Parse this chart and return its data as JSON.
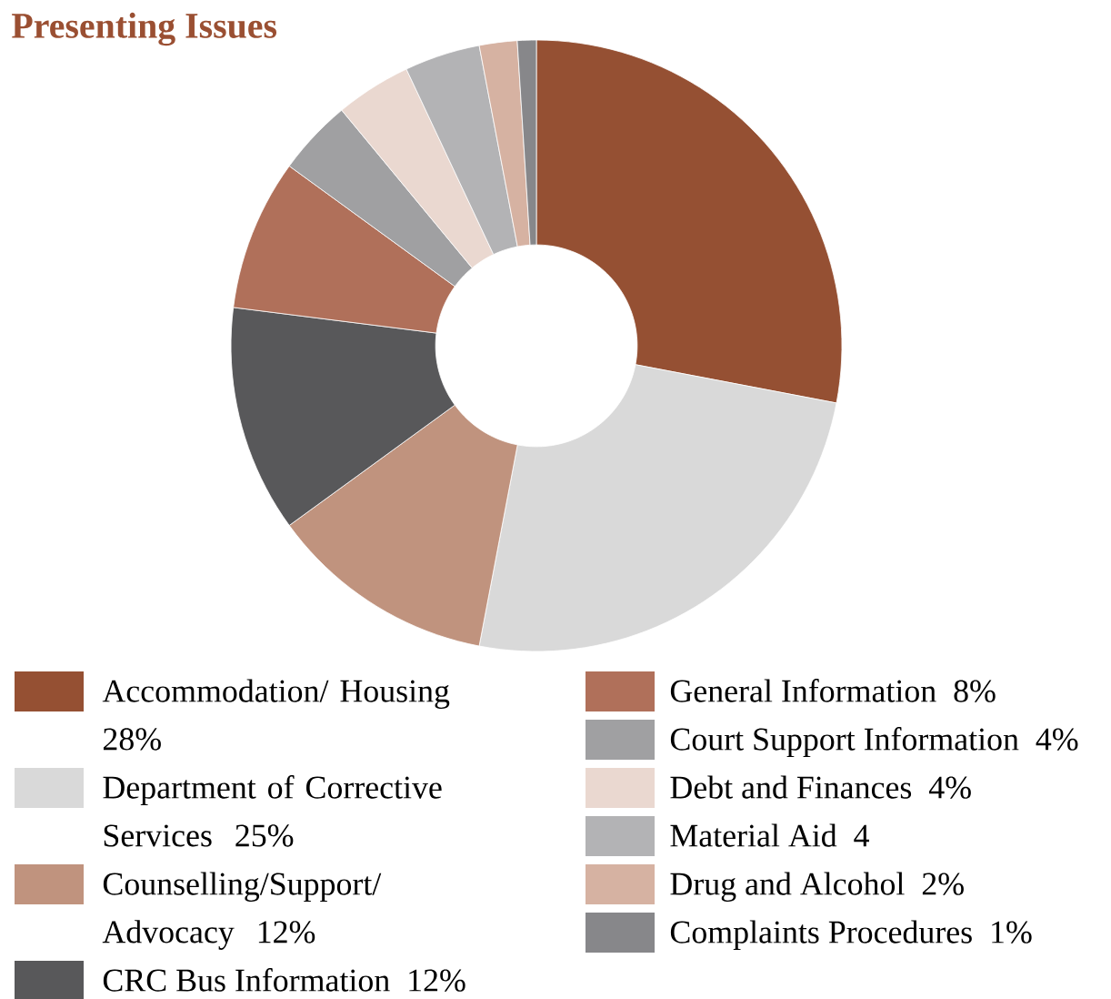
{
  "chart_data": {
    "type": "donut",
    "title": "Presenting Issues",
    "categories": [
      "Accommodation/ Housing",
      "Department of Corrective Services",
      "Counselling/Support/ Advocacy",
      "CRC Bus Information",
      "General Information",
      "Court Support Information",
      "Debt and Finances",
      "Material Aid",
      "Drug and Alcohol",
      "Complaints Procedures"
    ],
    "values": [
      28,
      25,
      12,
      12,
      8,
      4,
      4,
      4,
      2,
      1
    ],
    "value_labels": [
      "28%",
      "25%",
      "12%",
      "12%",
      "8%",
      "4%",
      "4%",
      "4",
      "2%",
      "1%"
    ],
    "colors": [
      "#955033",
      "#d9d9d9",
      "#c0937e",
      "#58585a",
      "#b0705a",
      "#a0a0a2",
      "#ead8d0",
      "#b3b3b5",
      "#d6b2a2",
      "#87878a"
    ],
    "legend": "bottom"
  }
}
